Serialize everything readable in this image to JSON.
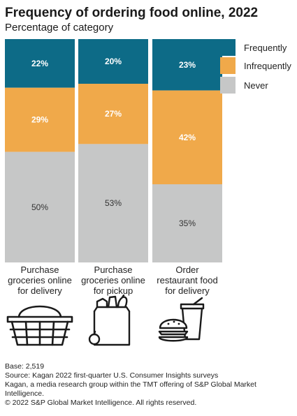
{
  "header": {
    "title": "Frequency of ordering food online, 2022",
    "subtitle": "Percentage of category"
  },
  "chart_data": {
    "type": "bar",
    "stacked": true,
    "title": "Frequency of ordering food online, 2022",
    "subtitle": "Percentage of category",
    "categories": [
      [
        "Purchase",
        "groceries online",
        "for delivery"
      ],
      [
        "Purchase",
        "groceries online",
        "for pickup"
      ],
      [
        "Order",
        "restaurant food",
        "for delivery"
      ]
    ],
    "ylim": [
      0,
      100
    ],
    "grid": false,
    "legend_position": "right",
    "series": [
      {
        "name": "Frequently",
        "values": [
          22,
          20,
          23
        ],
        "color": "#0d6b87",
        "label_color": "#ffffff"
      },
      {
        "name": "Infrequently",
        "values": [
          29,
          27,
          42
        ],
        "color": "#f0a94a",
        "label_color": "#ffffff"
      },
      {
        "name": "Never",
        "values": [
          50,
          53,
          35
        ],
        "color": "#c6c7c7",
        "label_color": "#333333"
      }
    ],
    "value_suffix": "%"
  },
  "icons": [
    "shopping-basket-icon",
    "grocery-bag-icon",
    "burger-and-drink-icon"
  ],
  "footer": {
    "base": "Base: 2,519",
    "source": "Source: Kagan 2022 first-quarter U.S. Consumer Insights surveys",
    "note_line1": "Kagan, a media research group within the TMT offering of S&P Global Market",
    "note_line2": "Intelligence.",
    "copyright": "© 2022 S&P Global Market Intelligence. All rights reserved."
  }
}
